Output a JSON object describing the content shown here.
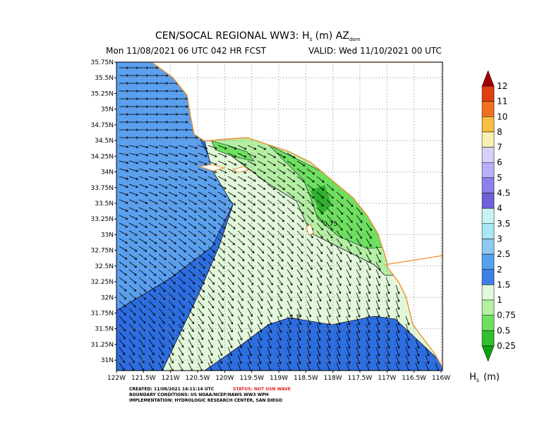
{
  "header": {
    "title": {
      "main": "CEN/SOCAL REGIONAL WW3: H",
      "sub1": "s",
      "mid": "(m) AZ",
      "sub2": "dom"
    },
    "run": "Mon 11/08/2021 06 UTC 042 HR FCST",
    "valid": "VALID: Wed 11/10/2021 00 UTC"
  },
  "map": {
    "lat_labels": [
      "35.75N",
      "35.5N",
      "35.25N",
      "35N",
      "34.75N",
      "34.5N",
      "34.25N",
      "34N",
      "33.75N",
      "33.5N",
      "33.25N",
      "33N",
      "32.75N",
      "32.5N",
      "32.25N",
      "32N",
      "31.75N",
      "31.5N",
      "31.25N",
      "31N"
    ],
    "lon_labels": [
      "122W",
      "121.5W",
      "121W",
      "120.5W",
      "120W",
      "119.5W",
      "119W",
      "118.5W",
      "118W",
      "117.5W",
      "117W",
      "116.5W",
      "116W"
    ],
    "contour_labels": [
      "0.75",
      "1.5"
    ]
  },
  "colorbar": {
    "labels": [
      "12",
      "11",
      "10",
      "8",
      "7",
      "6",
      "5",
      "4.5",
      "4",
      "3.5",
      "3",
      "2.5",
      "2",
      "1.5",
      "1",
      "0.75",
      "0.5",
      "0.25"
    ],
    "unit": {
      "symbol": "H",
      "subscript": "s",
      "unit": "(m)"
    }
  },
  "footer": {
    "created": "CREATED: 11/08/2021 14:11:14 UTC",
    "status": "STATUS: NOT USN WAVE",
    "boundary": "BOUNDARY CONDITIONS: US NOAA/NCEP/NAWS WW3 WPH",
    "implementation": "IMPLEMENTATION: HYDROLOGIC RESEARCH CENTER, SAN DIEGO"
  }
}
